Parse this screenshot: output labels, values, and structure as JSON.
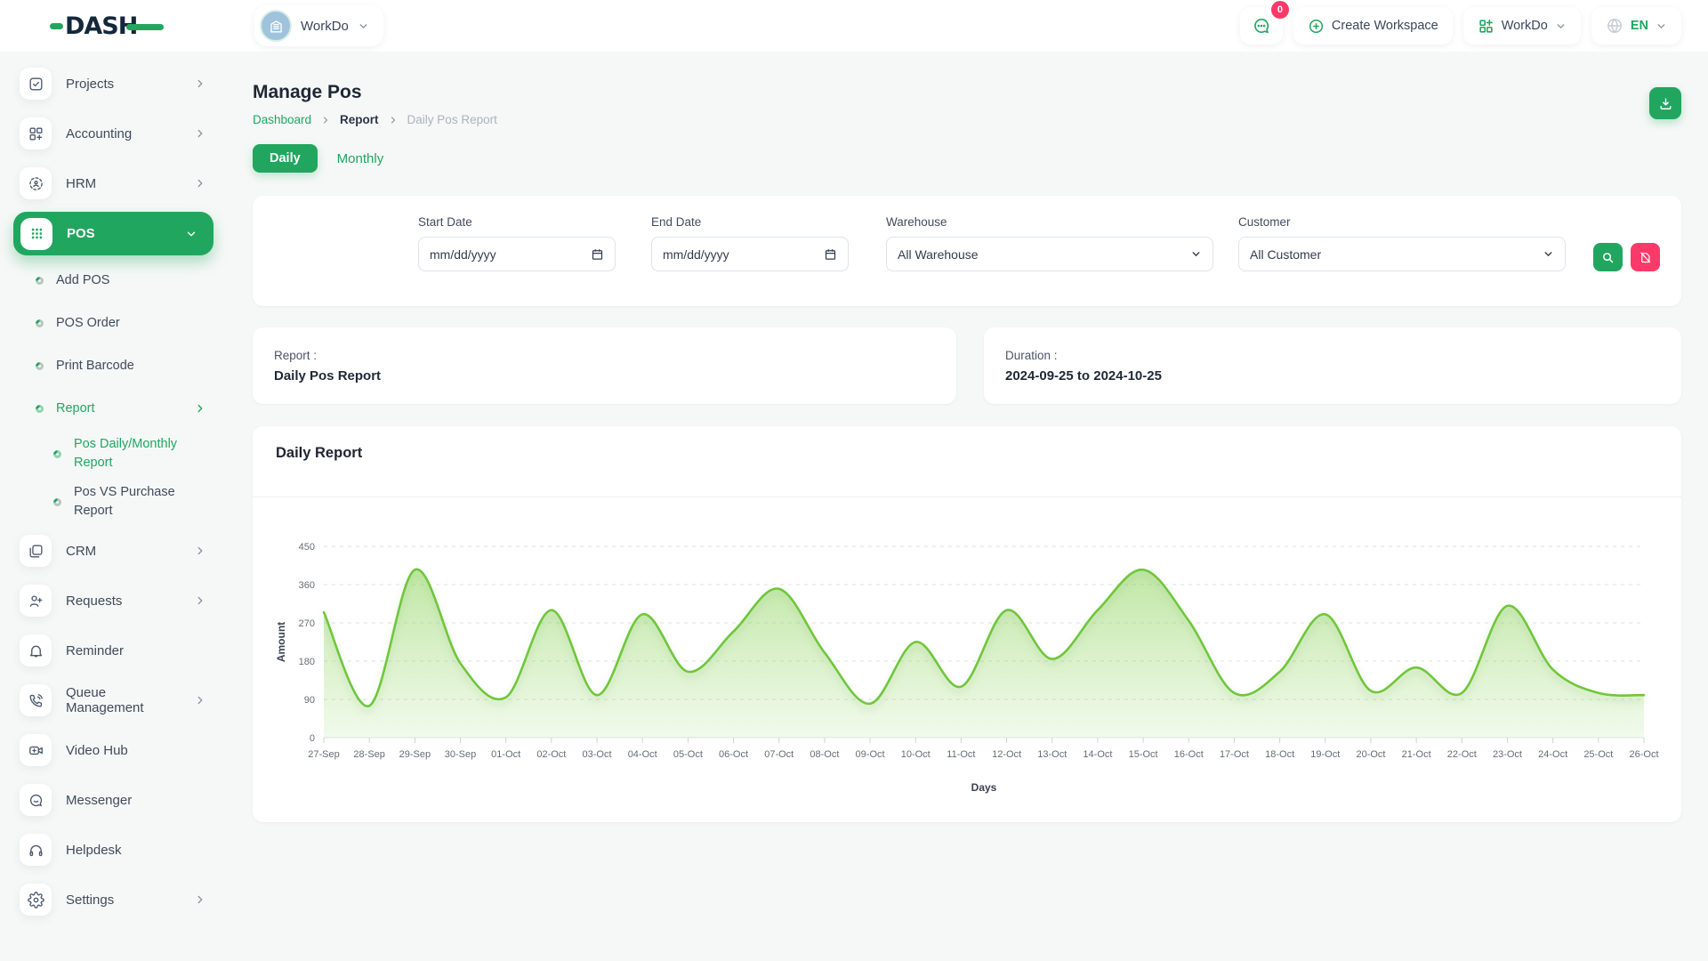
{
  "brand": {
    "name": "DASH"
  },
  "header": {
    "workspace_switcher": {
      "label": "WorkDo",
      "avatar_icon": "building-icon"
    },
    "messages_button": {
      "icon": "chat-icon",
      "badge": "0"
    },
    "create_workspace": {
      "label": "Create Workspace",
      "icon": "plus-circle-icon"
    },
    "workspace_menu": {
      "label": "WorkDo",
      "icon": "grid-plus-icon"
    },
    "language_menu": {
      "label": "EN",
      "icon": "globe-icon"
    }
  },
  "sidebar": {
    "items": [
      {
        "label": "Projects",
        "icon": "check-square-icon",
        "chevron": "right"
      },
      {
        "label": "Accounting",
        "icon": "category-icon",
        "chevron": "right"
      },
      {
        "label": "HRM",
        "icon": "scan-user-icon",
        "chevron": "right"
      },
      {
        "label": "POS",
        "icon": "dots-grid-icon",
        "chevron": "down",
        "active": true,
        "children": [
          {
            "label": "Add POS"
          },
          {
            "label": "POS Order"
          },
          {
            "label": "Print Barcode"
          },
          {
            "label": "Report",
            "active": true,
            "chevron": "right",
            "children": [
              {
                "label": "Pos Daily/Monthly Report",
                "active": true
              },
              {
                "label": "Pos VS Purchase Report"
              }
            ]
          }
        ]
      },
      {
        "label": "CRM",
        "icon": "frames-icon",
        "chevron": "right"
      },
      {
        "label": "Requests",
        "icon": "user-plus-icon",
        "chevron": "right"
      },
      {
        "label": "Reminder",
        "icon": "bell-icon"
      },
      {
        "label": "Queue Management",
        "icon": "phone-call-icon",
        "chevron": "right"
      },
      {
        "label": "Video Hub",
        "icon": "video-camera-icon"
      },
      {
        "label": "Messenger",
        "icon": "chat-bubble-icon"
      },
      {
        "label": "Helpdesk",
        "icon": "headphones-icon"
      },
      {
        "label": "Settings",
        "icon": "gear-icon",
        "chevron": "right"
      }
    ]
  },
  "page": {
    "title": "Manage Pos",
    "breadcrumb": [
      {
        "label": "Dashboard"
      },
      {
        "label": "Report"
      },
      {
        "label": "Daily Pos Report"
      }
    ],
    "tabs": {
      "daily": "Daily",
      "monthly": "Monthly"
    }
  },
  "filters": {
    "start_date": {
      "label": "Start Date",
      "value": "mm/dd/yyyy"
    },
    "end_date": {
      "label": "End Date",
      "value": "mm/dd/yyyy"
    },
    "warehouse": {
      "label": "Warehouse",
      "value": "All Warehouse"
    },
    "customer": {
      "label": "Customer",
      "value": "All Customer"
    }
  },
  "summary": {
    "report_label": "Report :",
    "report_value": "Daily Pos Report",
    "duration_label": "Duration :",
    "duration_value": "2024-09-25 to 2024-10-25"
  },
  "chart_card": {
    "title": "Daily Report"
  },
  "chart_data": {
    "type": "area",
    "title": "Daily Report",
    "xlabel": "Days",
    "ylabel": "Amount",
    "ylim": [
      0,
      450
    ],
    "yticks": [
      0,
      90,
      180,
      270,
      360,
      450
    ],
    "grid": "dashed-horizontal",
    "legend": "none",
    "categories": [
      "27-Sep",
      "28-Sep",
      "29-Sep",
      "30-Sep",
      "01-Oct",
      "02-Oct",
      "03-Oct",
      "04-Oct",
      "05-Oct",
      "06-Oct",
      "07-Oct",
      "08-Oct",
      "09-Oct",
      "10-Oct",
      "11-Oct",
      "12-Oct",
      "13-Oct",
      "14-Oct",
      "15-Oct",
      "16-Oct",
      "17-Oct",
      "18-Oct",
      "19-Oct",
      "20-Oct",
      "21-Oct",
      "22-Oct",
      "23-Oct",
      "24-Oct",
      "25-Oct",
      "26-Oct"
    ],
    "series": [
      {
        "name": "Amount",
        "values": [
          295,
          75,
          395,
          175,
          95,
          300,
          100,
          290,
          155,
          250,
          350,
          200,
          80,
          225,
          120,
          300,
          185,
          300,
          395,
          275,
          105,
          155,
          290,
          110,
          165,
          105,
          310,
          160,
          105,
          100
        ]
      }
    ],
    "line_color": "#6fc73a",
    "fill_color": "#8ed45e"
  },
  "theme": {
    "primary_green": "#21a65f",
    "pink": "#fb3a6a",
    "text_dark": "#1d2736",
    "muted": "#aab3bf"
  }
}
